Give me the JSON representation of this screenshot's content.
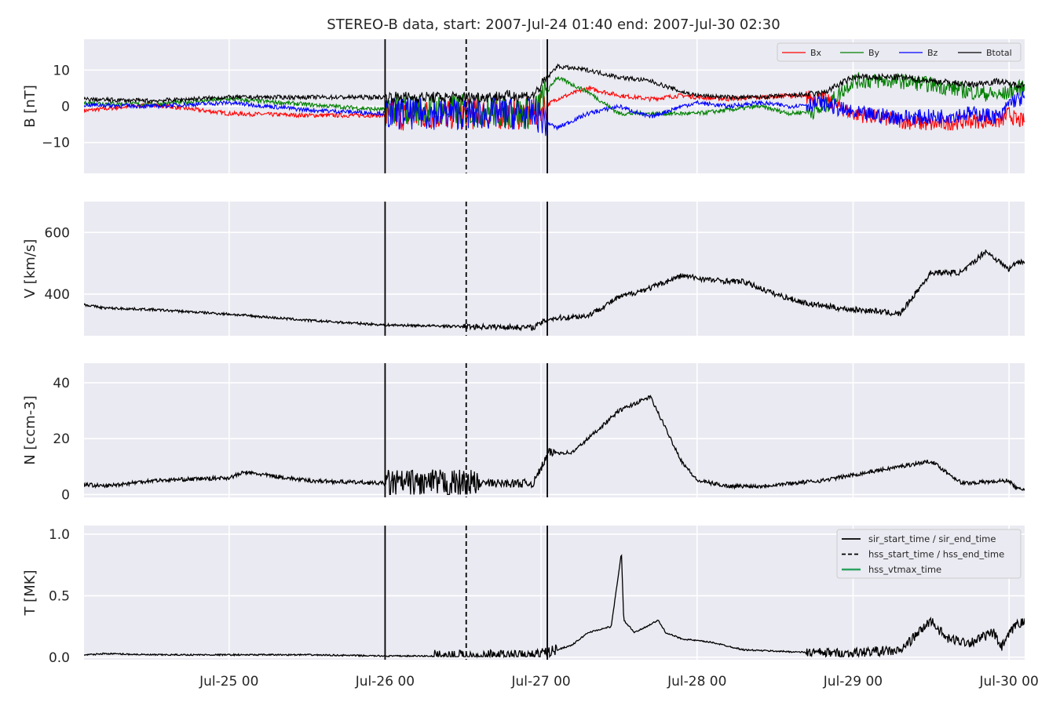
{
  "title": "STEREO-B data, start: 2007-Jul-24 01:40  end: 2007-Jul-30 02:30",
  "colors": {
    "panel_bg": "#eaeaf2",
    "grid": "#ffffff",
    "Bx": "#ff0000",
    "By": "#008000",
    "Bz": "#0000ff",
    "Btotal": "#000000",
    "marker": "#000000",
    "vtmax": "#2ca25f"
  },
  "chart_data": [
    {
      "type": "line",
      "id": "B",
      "ylabel": "B [nT]",
      "ylim": [
        -18.5,
        18.5
      ],
      "yticks": [
        -10,
        0,
        10
      ],
      "ytick_labels": [
        "−10",
        "0",
        "10"
      ],
      "legend_position": "top-right",
      "series": [
        {
          "name": "Bx",
          "color": "#ff0000",
          "x": [
            0,
            0.5,
            1,
            1.5,
            2,
            2.5,
            2.95,
            3.1,
            3.3,
            3.5,
            3.7,
            3.9,
            4.0,
            4.2,
            4.4,
            4.6,
            4.8,
            5.0,
            5.3,
            5.5,
            5.75,
            5.95,
            6.0,
            6.05
          ],
          "y": [
            -1.5,
            0.5,
            -2,
            -2.5,
            -2.5,
            -2,
            -2,
            2,
            5,
            3,
            2,
            3,
            2.5,
            2,
            2.5,
            3,
            2,
            -2,
            -4,
            -5,
            -4,
            -4,
            -2,
            -4
          ]
        },
        {
          "name": "By",
          "color": "#008000",
          "x": [
            0,
            0.5,
            1,
            1.5,
            2,
            2.5,
            2.95,
            3.1,
            3.3,
            3.5,
            3.7,
            3.9,
            4.0,
            4.2,
            4.4,
            4.6,
            4.8,
            5.0,
            5.3,
            5.5,
            5.75,
            5.95,
            6.0,
            6.05
          ],
          "y": [
            1,
            0.5,
            2,
            0.5,
            -1,
            -1,
            -2,
            8,
            4,
            -2,
            -2,
            -2,
            -2,
            -1,
            0,
            -2,
            -1,
            7,
            7,
            6,
            4,
            3,
            4,
            5
          ]
        },
        {
          "name": "Bz",
          "color": "#0000ff",
          "x": [
            0,
            0.5,
            1,
            1.5,
            2,
            2.5,
            2.95,
            3.1,
            3.3,
            3.5,
            3.7,
            3.9,
            4.0,
            4.2,
            4.4,
            4.6,
            4.8,
            5.0,
            5.3,
            5.5,
            5.75,
            5.95,
            6.0,
            6.05
          ],
          "y": [
            0.5,
            0,
            1,
            -1,
            -2,
            -2,
            -2,
            -6,
            -2,
            0,
            -3,
            0,
            1,
            0,
            1,
            0,
            1,
            -2,
            -3,
            -3,
            -2,
            -3,
            1,
            2
          ]
        },
        {
          "name": "Btotal",
          "color": "#000000",
          "x": [
            0,
            0.5,
            1,
            1.5,
            2,
            2.5,
            2.95,
            3.1,
            3.3,
            3.5,
            3.7,
            3.9,
            4.0,
            4.2,
            4.4,
            4.6,
            4.8,
            5.0,
            5.3,
            5.5,
            5.75,
            5.95,
            6.0,
            6.05
          ],
          "y": [
            2,
            1.5,
            2.5,
            2.5,
            2.5,
            2.5,
            3,
            11,
            10,
            8,
            7,
            4,
            3,
            2.5,
            2.5,
            3,
            3.5,
            8,
            8,
            7,
            6,
            7,
            6,
            6
          ]
        }
      ]
    },
    {
      "type": "line",
      "id": "V",
      "ylabel": "V [km/s]",
      "ylim": [
        265,
        700
      ],
      "yticks": [
        400,
        600
      ],
      "ytick_labels": [
        "400",
        "600"
      ],
      "series": [
        {
          "name": "V",
          "color": "#000000",
          "x": [
            0,
            0.2,
            0.5,
            1,
            1.5,
            2,
            2.5,
            2.95,
            3.05,
            3.3,
            3.5,
            3.7,
            3.9,
            4.1,
            4.3,
            4.5,
            4.7,
            4.95,
            5.15,
            5.3,
            5.5,
            5.7,
            5.85,
            6.0,
            6.05
          ],
          "y": [
            372,
            355,
            350,
            335,
            315,
            300,
            295,
            292,
            320,
            330,
            390,
            420,
            460,
            445,
            440,
            400,
            370,
            352,
            345,
            335,
            470,
            470,
            540,
            480,
            505
          ]
        }
      ]
    },
    {
      "type": "line",
      "id": "N",
      "ylabel": "N [ccm-3]",
      "ylim": [
        -1,
        47
      ],
      "yticks": [
        0,
        20,
        40
      ],
      "ytick_labels": [
        "0",
        "20",
        "40"
      ],
      "series": [
        {
          "name": "N",
          "color": "#000000",
          "x": [
            0,
            0.2,
            0.5,
            1,
            1.1,
            1.5,
            2,
            2.5,
            2.95,
            3.05,
            3.2,
            3.4,
            3.5,
            3.7,
            3.9,
            4.0,
            4.2,
            4.4,
            4.8,
            5.0,
            5.3,
            5.5,
            5.7,
            6.0,
            6.05
          ],
          "y": [
            4,
            3,
            5,
            6,
            8,
            5,
            4,
            4,
            4,
            15,
            15,
            25,
            30,
            35,
            12,
            5,
            3,
            3,
            5,
            7,
            10,
            12,
            4,
            5,
            2
          ]
        }
      ]
    },
    {
      "type": "line",
      "id": "T",
      "ylabel": "T [MK]",
      "ylim": [
        -0.02,
        1.07
      ],
      "yticks": [
        0.0,
        0.5,
        1.0
      ],
      "ytick_labels": [
        "0.0",
        "0.5",
        "1.0"
      ],
      "legend_position": "top-right",
      "series": [
        {
          "name": "T",
          "color": "#000000",
          "x": [
            0,
            0.2,
            0.5,
            1,
            1.5,
            2,
            2.5,
            2.95,
            3.05,
            3.2,
            3.3,
            3.45,
            3.515,
            3.53,
            3.6,
            3.75,
            3.8,
            3.9,
            4.1,
            4.3,
            4.5,
            4.7,
            4.95,
            5.15,
            5.3,
            5.5,
            5.6,
            5.75,
            5.9,
            5.95,
            6.05
          ],
          "y": [
            0.01,
            0.03,
            0.02,
            0.02,
            0.02,
            0.01,
            0.01,
            0.01,
            0.04,
            0.1,
            0.2,
            0.25,
            0.85,
            0.3,
            0.2,
            0.3,
            0.2,
            0.15,
            0.12,
            0.06,
            0.05,
            0.04,
            0.03,
            0.05,
            0.05,
            0.3,
            0.15,
            0.12,
            0.2,
            0.08,
            0.28
          ]
        }
      ]
    },
    {
      "type": "vlines",
      "x_axis": {
        "range_days_from_jul24_00": [
          0.07,
          6.1
        ],
        "tick_labels": [
          "Jul-25 00",
          "Jul-26 00",
          "Jul-27 00",
          "Jul-28 00",
          "Jul-29 00",
          "Jul-30 00"
        ]
      },
      "markers": {
        "sir": [
          2.0,
          3.04
        ],
        "hss": [
          2.52
        ]
      },
      "legend": [
        {
          "label": "sir_start_time / sir_end_time",
          "style": "solid",
          "color": "#000000"
        },
        {
          "label": "hss_start_time / hss_end_time",
          "style": "dashed",
          "color": "#000000"
        },
        {
          "label": "hss_vtmax_time",
          "style": "solid",
          "color": "#2ca25f"
        }
      ]
    }
  ]
}
